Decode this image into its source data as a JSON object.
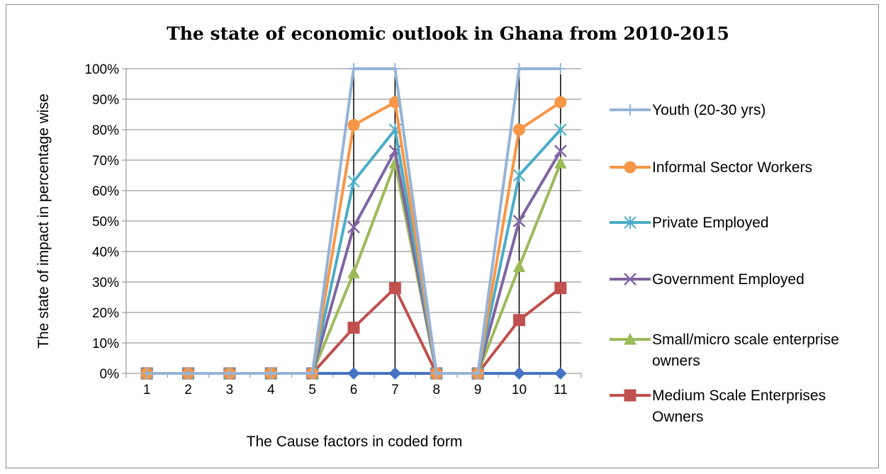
{
  "chart_data": {
    "type": "line",
    "title": "The state of economic outlook in Ghana from  2010-2015",
    "xlabel": "The Cause factors in coded form",
    "ylabel": "The state of impact in percentage wise",
    "categories": [
      "1",
      "2",
      "3",
      "4",
      "5",
      "6",
      "7",
      "8",
      "9",
      "10",
      "11"
    ],
    "ylim": [
      0,
      1
    ],
    "y_ticks": [
      "0%",
      "10%",
      "20%",
      "30%",
      "40%",
      "50%",
      "60%",
      "70%",
      "80%",
      "90%",
      "100%"
    ],
    "grid": "horizontal",
    "drop_lines": true,
    "legend_position": "right",
    "series": [
      {
        "name": "",
        "color": "#4472c4",
        "marker": "diamond",
        "values": [
          0,
          0,
          0,
          0,
          0,
          0,
          0,
          0,
          0,
          0,
          0
        ]
      },
      {
        "name": "Medium Scale Enterprises Owners",
        "color": "#c0504d",
        "marker": "square",
        "values": [
          0,
          0,
          0,
          0,
          0,
          0.15,
          0.28,
          0,
          0,
          0.175,
          0.28
        ]
      },
      {
        "name": "Small/micro scale enterprise owners",
        "color": "#9bbb59",
        "marker": "triangle",
        "values": [
          0,
          0,
          0,
          0,
          0,
          0.33,
          0.69,
          0,
          0,
          0.35,
          0.69
        ]
      },
      {
        "name": "Government Employed",
        "color": "#8064a2",
        "marker": "x",
        "values": [
          0,
          0,
          0,
          0,
          0,
          0.48,
          0.73,
          0,
          0,
          0.5,
          0.73
        ]
      },
      {
        "name": "Private Employed",
        "color": "#4bacc6",
        "marker": "star",
        "values": [
          0,
          0,
          0,
          0,
          0,
          0.63,
          0.8,
          0,
          0,
          0.65,
          0.8
        ]
      },
      {
        "name": "Informal Sector Workers",
        "color": "#f79646",
        "marker": "circle",
        "values": [
          0,
          0,
          0,
          0,
          0,
          0.815,
          0.89,
          0,
          0,
          0.8,
          0.89
        ]
      },
      {
        "name": "Youth (20-30 yrs)",
        "color": "#95b3d7",
        "marker": "plus",
        "values": [
          0,
          0,
          0,
          0,
          0,
          1.0,
          1.0,
          0,
          0,
          1.0,
          1.0
        ]
      }
    ],
    "legend_order": [
      {
        "name": "Youth (20-30 yrs)",
        "lines": [
          "Youth (20-30 yrs)"
        ]
      },
      {
        "name": "Informal Sector Workers",
        "lines": [
          "Informal Sector Workers"
        ]
      },
      {
        "name": "Private Employed",
        "lines": [
          "Private Employed"
        ]
      },
      {
        "name": "Government Employed",
        "lines": [
          "Government Employed"
        ]
      },
      {
        "name": "Small/micro scale enterprise owners",
        "lines": [
          "Small/micro scale enterprise",
          "owners"
        ]
      },
      {
        "name": "Medium Scale Enterprises Owners",
        "lines": [
          "Medium Scale Enterprises",
          "Owners"
        ]
      }
    ]
  }
}
